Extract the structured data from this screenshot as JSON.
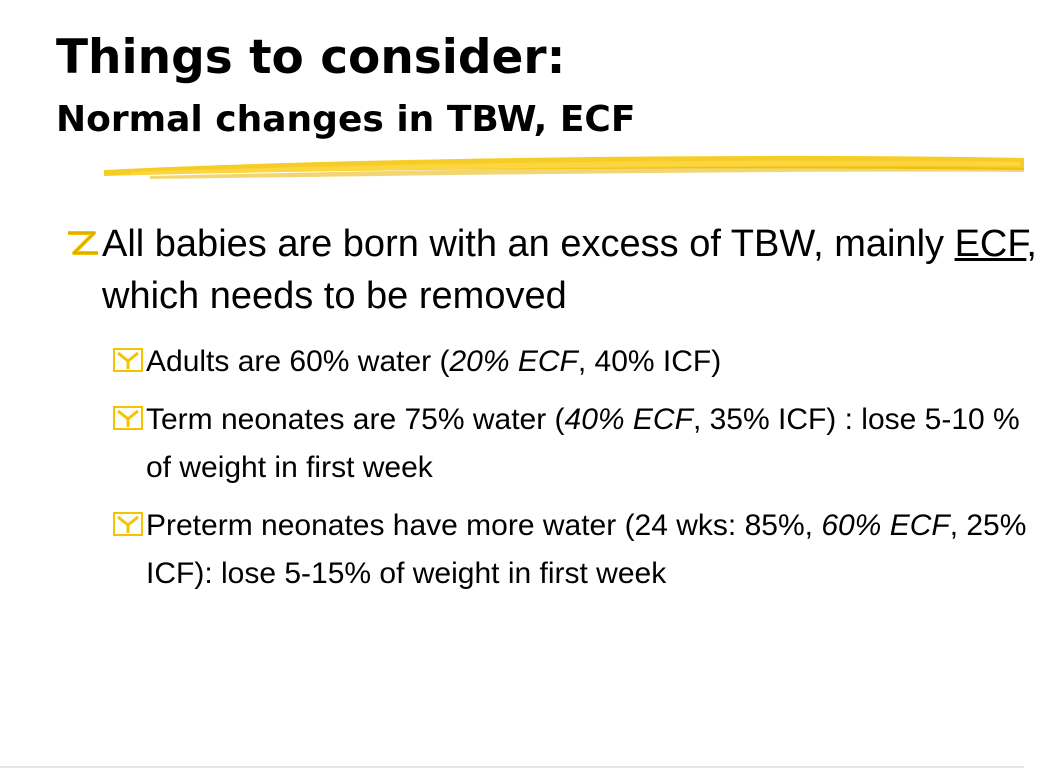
{
  "slide": {
    "title": "Things to consider:",
    "subtitle": "Normal changes in TBW, ECF",
    "accent_color": "#f5c400",
    "level1_icon": "z-flag-icon",
    "level2_icon": "y-box-icon",
    "bullet1": {
      "text_a": "All babies are born with an excess of TBW, mainly ",
      "underlined": "ECF",
      "text_b": ", which needs to be removed"
    },
    "sub1": {
      "text_a": "Adults are 60% water (",
      "italic": "20% ECF",
      "text_b": ", 40% ICF)"
    },
    "sub2": {
      "text_a": "Term neonates are 75% water (",
      "italic": "40% ECF",
      "text_b": ", 35% ICF) : lose 5-10 % of weight in first week"
    },
    "sub3": {
      "text_a": "Preterm neonates have more water (24 wks: 85%, ",
      "italic": "60% ECF",
      "text_b": ", 25% ICF): lose 5-15% of weight in first week"
    }
  }
}
